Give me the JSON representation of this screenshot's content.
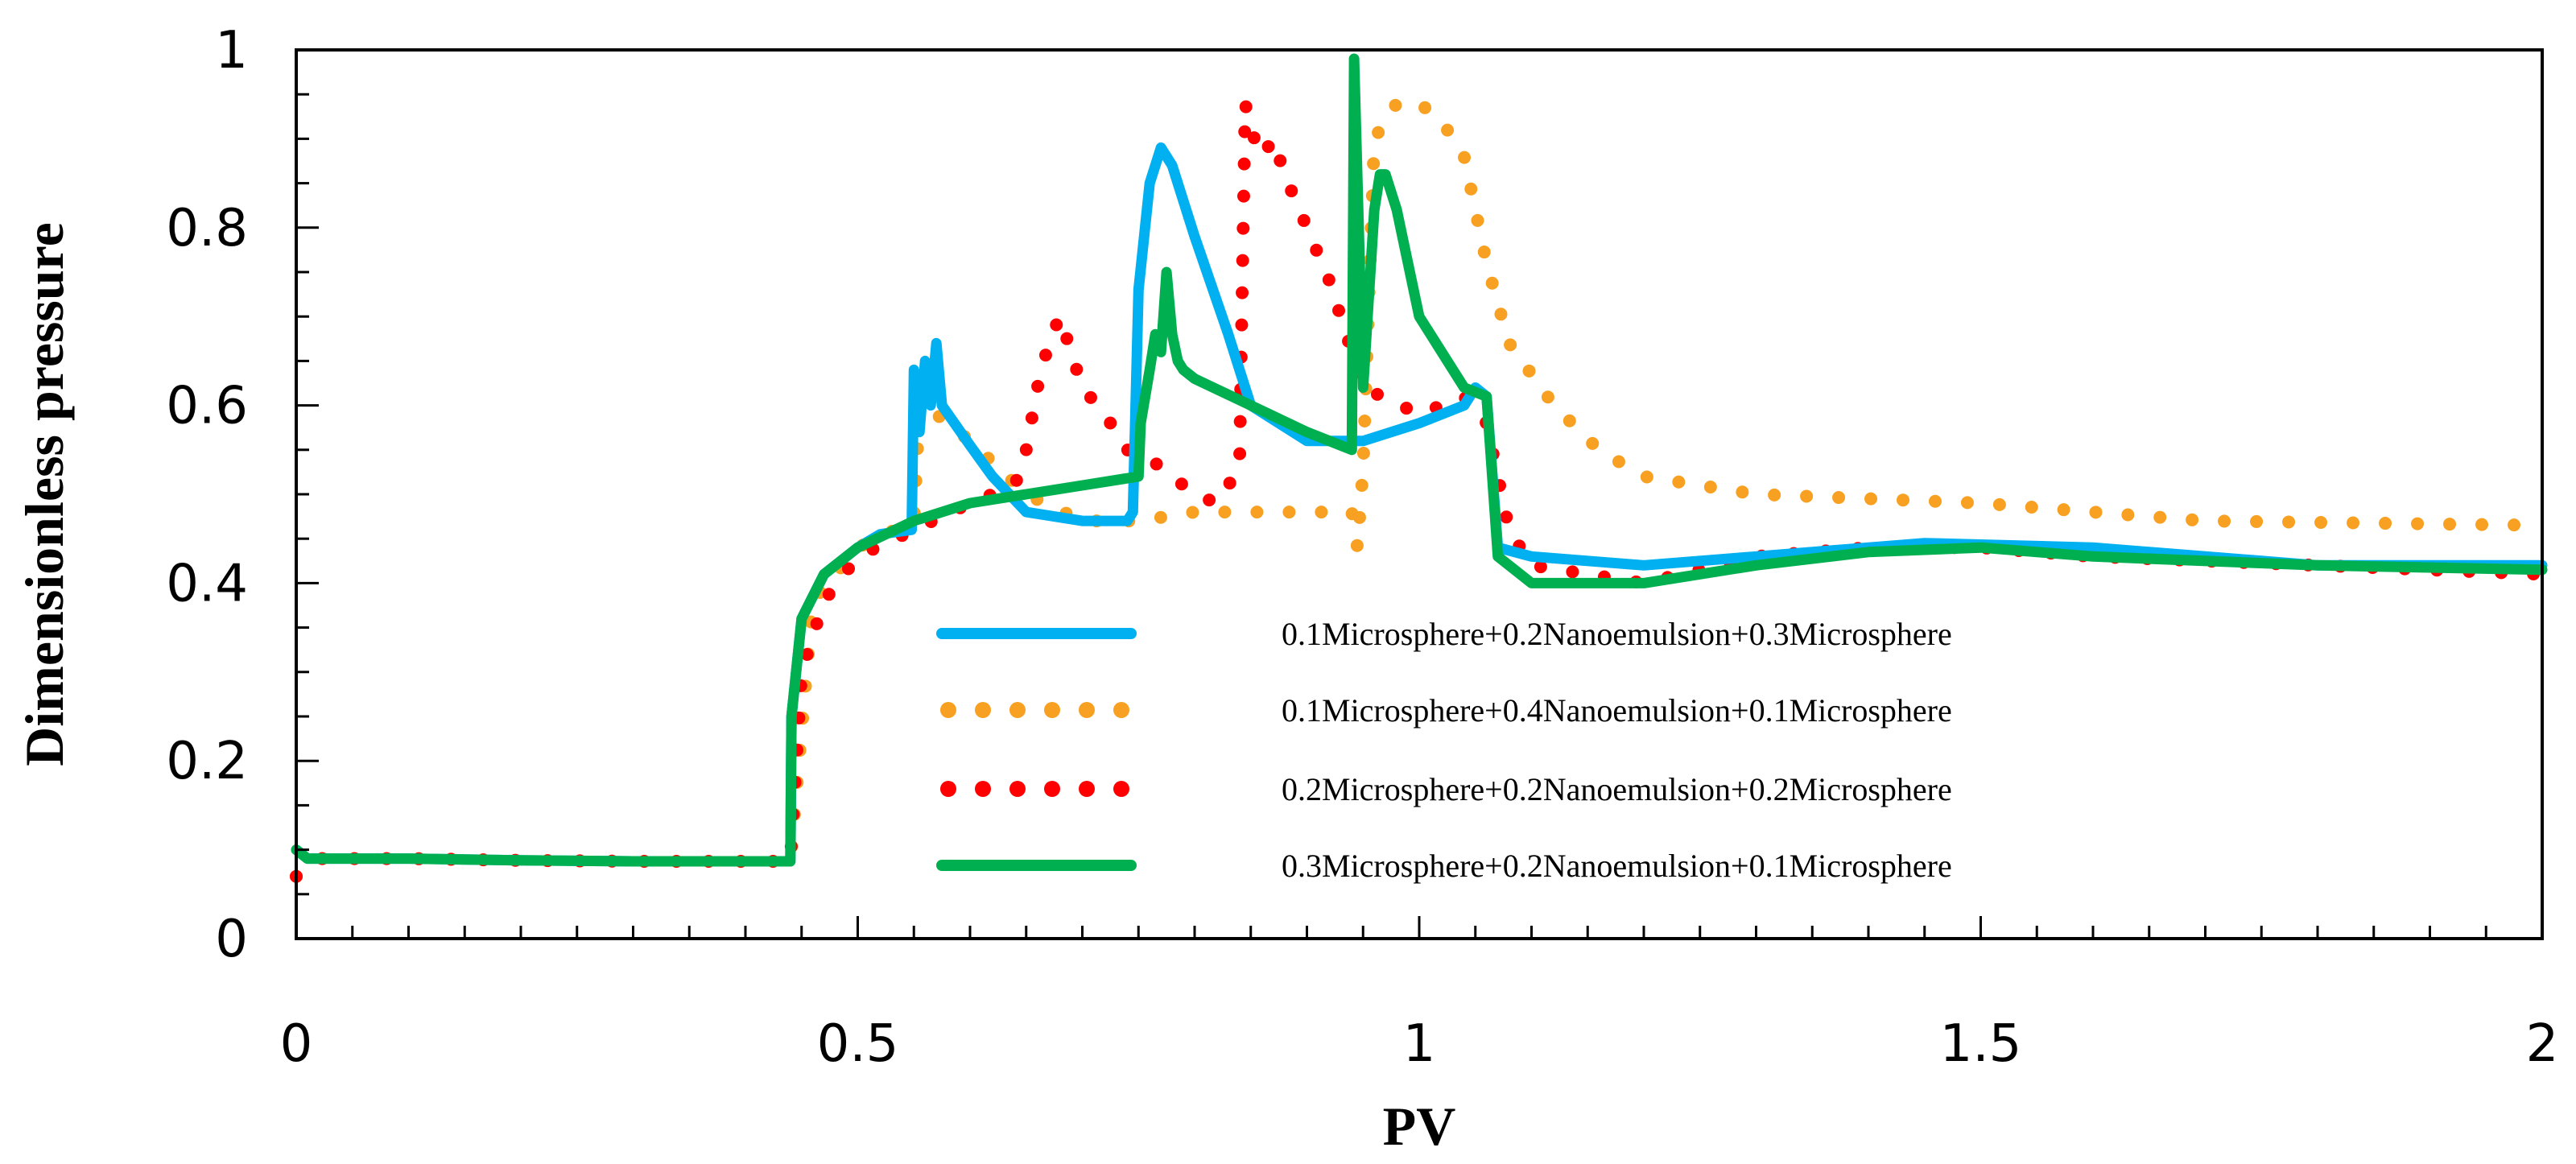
{
  "chart_data": {
    "type": "line",
    "title": "",
    "xlabel": "PV",
    "ylabel": "Dimensionless pressure",
    "xlim": [
      0,
      2
    ],
    "ylim": [
      0,
      1
    ],
    "xticks": [
      0,
      0.5,
      1,
      1.5,
      2
    ],
    "yticks": [
      0,
      0.2,
      0.4,
      0.6,
      0.8,
      1
    ],
    "xtick_labels": [
      "0",
      "0.5",
      "1",
      "1.5",
      "2"
    ],
    "ytick_labels": [
      "0",
      "0.2",
      "0.4",
      "0.6",
      "0.8",
      "1"
    ],
    "grid": false,
    "legend_position": "center",
    "series": [
      {
        "name": "0.1Microsphere+0.2Nanoemulsion+0.3Microsphere",
        "color": "#00b0f0",
        "style": "solid",
        "x": [
          0,
          0.01,
          0.1,
          0.2,
          0.3,
          0.44,
          0.441,
          0.45,
          0.47,
          0.5,
          0.52,
          0.548,
          0.55,
          0.555,
          0.56,
          0.565,
          0.57,
          0.575,
          0.6,
          0.62,
          0.65,
          0.7,
          0.74,
          0.745,
          0.75,
          0.76,
          0.77,
          0.78,
          0.8,
          0.83,
          0.85,
          0.9,
          0.94,
          0.95,
          1,
          1.04,
          1.05,
          1.06,
          1.07,
          1.1,
          1.2,
          1.3,
          1.45,
          1.6,
          1.8,
          2
        ],
        "y": [
          0.1,
          0.09,
          0.09,
          0.088,
          0.087,
          0.087,
          0.25,
          0.36,
          0.41,
          0.44,
          0.455,
          0.46,
          0.64,
          0.57,
          0.65,
          0.6,
          0.67,
          0.6,
          0.555,
          0.52,
          0.48,
          0.47,
          0.47,
          0.48,
          0.73,
          0.85,
          0.89,
          0.87,
          0.79,
          0.68,
          0.6,
          0.56,
          0.56,
          0.56,
          0.58,
          0.6,
          0.62,
          0.61,
          0.44,
          0.43,
          0.42,
          0.43,
          0.445,
          0.44,
          0.42,
          0.42
        ]
      },
      {
        "name": "0.1Microsphere+0.4Nanoemulsion+0.1Microsphere",
        "color": "#f7a021",
        "style": "dotted",
        "x": [
          0,
          0.02,
          0.1,
          0.2,
          0.3,
          0.44,
          0.46,
          0.5,
          0.55,
          0.555,
          0.56,
          0.57,
          0.58,
          0.6,
          0.65,
          0.7,
          0.75,
          0.8,
          0.85,
          0.9,
          0.94,
          0.945,
          0.95,
          0.96,
          0.98,
          1.0,
          1.02,
          1.04,
          1.06,
          1.08,
          1.12,
          1.16,
          1.2,
          1.3,
          1.5,
          1.7,
          2
        ],
        "y": [
          0.07,
          0.09,
          0.09,
          0.088,
          0.087,
          0.087,
          0.38,
          0.44,
          0.47,
          0.6,
          0.64,
          0.59,
          0.58,
          0.56,
          0.5,
          0.47,
          0.47,
          0.48,
          0.48,
          0.48,
          0.48,
          0.44,
          0.53,
          0.9,
          0.94,
          0.94,
          0.92,
          0.88,
          0.76,
          0.67,
          0.6,
          0.55,
          0.52,
          0.5,
          0.49,
          0.47,
          0.465
        ]
      },
      {
        "name": "0.2Microsphere+0.2Nanoemulsion+0.2Microsphere",
        "color": "#ff0000",
        "style": "dotted",
        "x": [
          0,
          0.02,
          0.1,
          0.2,
          0.3,
          0.44,
          0.45,
          0.47,
          0.5,
          0.55,
          0.6,
          0.64,
          0.65,
          0.66,
          0.67,
          0.68,
          0.7,
          0.72,
          0.74,
          0.76,
          0.78,
          0.8,
          0.82,
          0.84,
          0.842,
          0.845,
          0.85,
          0.86,
          0.87,
          0.88,
          0.9,
          0.92,
          0.95,
          1.0,
          1.04,
          1.06,
          1.08,
          1.1,
          1.2,
          1.3,
          1.4,
          1.5,
          1.6,
          1.8,
          2
        ],
        "y": [
          0.07,
          0.09,
          0.09,
          0.088,
          0.087,
          0.087,
          0.3,
          0.38,
          0.43,
          0.46,
          0.49,
          0.51,
          0.55,
          0.62,
          0.67,
          0.7,
          0.62,
          0.59,
          0.55,
          0.54,
          0.52,
          0.5,
          0.49,
          0.53,
          0.7,
          0.94,
          0.91,
          0.88,
          0.9,
          0.86,
          0.8,
          0.74,
          0.62,
          0.59,
          0.61,
          0.58,
          0.46,
          0.42,
          0.4,
          0.43,
          0.44,
          0.44,
          0.43,
          0.42,
          0.41
        ]
      },
      {
        "name": "0.3Microsphere+0.2Nanoemulsion+0.1Microsphere",
        "color": "#00b050",
        "style": "solid",
        "x": [
          0,
          0.01,
          0.1,
          0.2,
          0.3,
          0.44,
          0.441,
          0.45,
          0.47,
          0.5,
          0.55,
          0.6,
          0.65,
          0.7,
          0.75,
          0.752,
          0.76,
          0.765,
          0.77,
          0.775,
          0.78,
          0.785,
          0.79,
          0.8,
          0.85,
          0.9,
          0.94,
          0.942,
          0.95,
          0.96,
          0.965,
          0.97,
          0.98,
          1.0,
          1.04,
          1.06,
          1.07,
          1.1,
          1.15,
          1.2,
          1.3,
          1.4,
          1.5,
          1.6,
          1.8,
          2
        ],
        "y": [
          0.1,
          0.09,
          0.09,
          0.088,
          0.087,
          0.087,
          0.25,
          0.36,
          0.41,
          0.44,
          0.47,
          0.49,
          0.5,
          0.51,
          0.52,
          0.58,
          0.64,
          0.68,
          0.66,
          0.75,
          0.68,
          0.65,
          0.64,
          0.63,
          0.6,
          0.57,
          0.55,
          0.99,
          0.62,
          0.82,
          0.86,
          0.86,
          0.82,
          0.7,
          0.62,
          0.61,
          0.43,
          0.4,
          0.4,
          0.4,
          0.42,
          0.435,
          0.44,
          0.43,
          0.42,
          0.415
        ]
      }
    ]
  }
}
